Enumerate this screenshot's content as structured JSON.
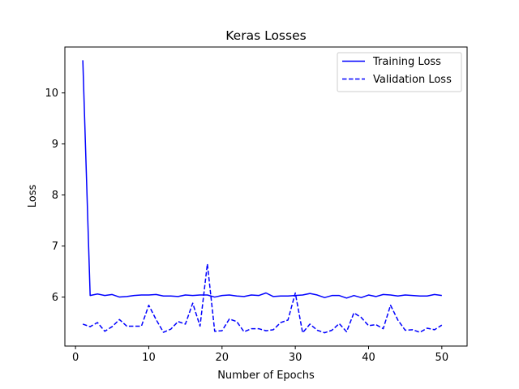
{
  "chart_data": {
    "type": "line",
    "title": "Keras Losses",
    "xlabel": "Number of Epochs",
    "ylabel": "Loss",
    "xlim": [
      -1.45,
      53.45
    ],
    "ylim": [
      5.04,
      10.9
    ],
    "xticks": [
      0,
      10,
      20,
      30,
      40,
      50
    ],
    "yticks": [
      6,
      7,
      8,
      9,
      10
    ],
    "grid": false,
    "legend_position": "top-right",
    "x": [
      1,
      2,
      3,
      4,
      5,
      6,
      7,
      8,
      9,
      10,
      11,
      12,
      13,
      14,
      15,
      16,
      17,
      18,
      19,
      20,
      21,
      22,
      23,
      24,
      25,
      26,
      27,
      28,
      29,
      30,
      31,
      32,
      33,
      34,
      35,
      36,
      37,
      38,
      39,
      40,
      41,
      42,
      43,
      44,
      45,
      46,
      47,
      48,
      49,
      50
    ],
    "series": [
      {
        "name": "Training Loss",
        "color": "#0000ff",
        "line_style": "solid",
        "values": [
          10.64,
          6.03,
          6.06,
          6.03,
          6.05,
          6.0,
          6.01,
          6.03,
          6.04,
          6.04,
          6.05,
          6.02,
          6.02,
          6.01,
          6.04,
          6.03,
          6.04,
          6.04,
          6.0,
          6.03,
          6.04,
          6.02,
          6.01,
          6.04,
          6.03,
          6.08,
          6.01,
          6.02,
          6.02,
          6.03,
          6.04,
          6.07,
          6.04,
          5.99,
          6.03,
          6.03,
          5.98,
          6.03,
          5.99,
          6.04,
          6.01,
          6.05,
          6.04,
          6.02,
          6.04,
          6.03,
          6.02,
          6.02,
          6.05,
          6.03
        ]
      },
      {
        "name": "Validation Loss",
        "color": "#0000ff",
        "line_style": "dashed",
        "values": [
          5.47,
          5.42,
          5.5,
          5.33,
          5.42,
          5.56,
          5.43,
          5.43,
          5.43,
          5.84,
          5.56,
          5.31,
          5.37,
          5.52,
          5.47,
          5.88,
          5.43,
          6.65,
          5.33,
          5.34,
          5.57,
          5.52,
          5.32,
          5.38,
          5.38,
          5.34,
          5.36,
          5.5,
          5.55,
          6.08,
          5.3,
          5.47,
          5.35,
          5.3,
          5.35,
          5.48,
          5.32,
          5.69,
          5.6,
          5.44,
          5.46,
          5.38,
          5.84,
          5.55,
          5.35,
          5.36,
          5.31,
          5.39,
          5.36,
          5.45
        ]
      }
    ]
  }
}
